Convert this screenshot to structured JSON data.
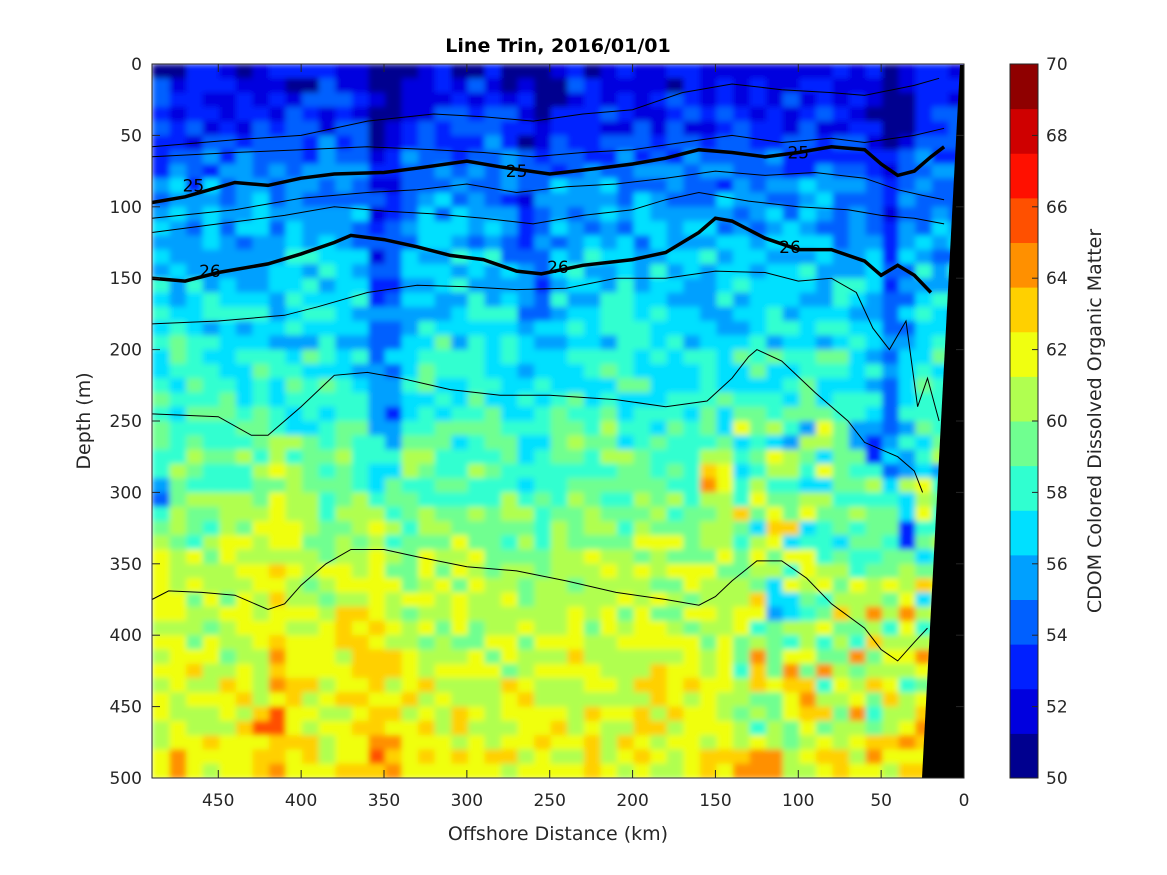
{
  "chart_data": {
    "type": "heatmap",
    "title": "Line Trin, 2016/01/01",
    "xlabel": "Offshore Distance (km)",
    "ylabel": "Depth (m)",
    "colorbar_label": "CDOM Colored Dissolved Organic Matter",
    "xlim": [
      0,
      490
    ],
    "x_reversed": true,
    "ylim": [
      0,
      500
    ],
    "y_reversed": true,
    "clim": [
      50,
      70
    ],
    "x_ticks": [
      450,
      400,
      350,
      300,
      250,
      200,
      150,
      100,
      50,
      0
    ],
    "y_ticks": [
      0,
      50,
      100,
      150,
      200,
      250,
      300,
      350,
      400,
      450,
      500
    ],
    "colorbar_ticks": [
      50,
      52,
      54,
      56,
      58,
      60,
      62,
      64,
      66,
      68,
      70
    ],
    "colormap": "jet",
    "colorbar_colors": [
      "#00008f",
      "#0000df",
      "#0020ff",
      "#0060ff",
      "#00a0ff",
      "#00e0ff",
      "#30ffd0",
      "#70ff90",
      "#b0ff50",
      "#f0ff10",
      "#ffd000",
      "#ff9000",
      "#ff5000",
      "#ff1000",
      "#cf0000",
      "#8f0000"
    ],
    "depth_profile": [
      {
        "depth": 0,
        "value": 53.5
      },
      {
        "depth": 50,
        "value": 54
      },
      {
        "depth": 100,
        "value": 55.5
      },
      {
        "depth": 150,
        "value": 56.5
      },
      {
        "depth": 200,
        "value": 57.5
      },
      {
        "depth": 250,
        "value": 58.5
      },
      {
        "depth": 300,
        "value": 59.5
      },
      {
        "depth": 350,
        "value": 60.5
      },
      {
        "depth": 400,
        "value": 61
      },
      {
        "depth": 450,
        "value": 61.5
      },
      {
        "depth": 500,
        "value": 62
      }
    ],
    "vertical_low_bands": [
      {
        "x": 350,
        "value_offset": -3
      },
      {
        "x": 260,
        "value_offset": -2
      },
      {
        "x": 45,
        "value_offset": -2.5
      }
    ],
    "hot_spots": [
      {
        "x": 420,
        "depth": 460,
        "value": 67
      },
      {
        "x": 370,
        "depth": 390,
        "value": 65
      },
      {
        "x": 150,
        "depth": 290,
        "value": 67
      },
      {
        "x": 120,
        "depth": 490,
        "value": 67
      },
      {
        "x": 350,
        "depth": 490,
        "value": 66
      },
      {
        "x": 470,
        "depth": 490,
        "value": 65
      }
    ],
    "cold_spots": [
      {
        "x": 110,
        "depth": 380,
        "value": 52.5
      },
      {
        "x": 35,
        "depth": 330,
        "value": 53
      },
      {
        "x": 55,
        "depth": 270,
        "value": 53
      },
      {
        "x": 345,
        "depth": 250,
        "value": 53
      },
      {
        "x": 485,
        "depth": 300,
        "value": 54
      }
    ],
    "bold_isopycnals": [
      {
        "label": "25",
        "label_positions": [
          [
            465,
            85
          ],
          [
            270,
            75
          ],
          [
            100,
            62
          ]
        ],
        "points": [
          [
            490,
            97
          ],
          [
            470,
            93
          ],
          [
            440,
            83
          ],
          [
            420,
            85
          ],
          [
            400,
            80
          ],
          [
            380,
            77
          ],
          [
            350,
            76
          ],
          [
            330,
            73
          ],
          [
            300,
            68
          ],
          [
            280,
            72
          ],
          [
            250,
            77
          ],
          [
            220,
            73
          ],
          [
            200,
            70
          ],
          [
            180,
            66
          ],
          [
            160,
            60
          ],
          [
            140,
            62
          ],
          [
            120,
            65
          ],
          [
            100,
            62
          ],
          [
            80,
            58
          ],
          [
            60,
            60
          ],
          [
            50,
            70
          ],
          [
            40,
            78
          ],
          [
            30,
            75
          ],
          [
            20,
            65
          ],
          [
            12,
            58
          ]
        ]
      },
      {
        "label": "26",
        "label_positions": [
          [
            455,
            145
          ],
          [
            245,
            142
          ],
          [
            105,
            128
          ]
        ],
        "points": [
          [
            490,
            150
          ],
          [
            470,
            152
          ],
          [
            450,
            146
          ],
          [
            420,
            140
          ],
          [
            400,
            133
          ],
          [
            380,
            125
          ],
          [
            370,
            120
          ],
          [
            350,
            123
          ],
          [
            330,
            128
          ],
          [
            310,
            134
          ],
          [
            290,
            137
          ],
          [
            270,
            145
          ],
          [
            255,
            147
          ],
          [
            230,
            141
          ],
          [
            200,
            137
          ],
          [
            180,
            132
          ],
          [
            160,
            118
          ],
          [
            150,
            108
          ],
          [
            140,
            110
          ],
          [
            120,
            122
          ],
          [
            100,
            130
          ],
          [
            80,
            130
          ],
          [
            60,
            138
          ],
          [
            50,
            148
          ],
          [
            40,
            141
          ],
          [
            30,
            148
          ],
          [
            20,
            160
          ]
        ]
      }
    ],
    "thin_isopycnals": [
      [
        [
          490,
          58
        ],
        [
          440,
          53
        ],
        [
          400,
          50
        ],
        [
          360,
          40
        ],
        [
          320,
          35
        ],
        [
          290,
          37
        ],
        [
          260,
          40
        ],
        [
          230,
          35
        ],
        [
          200,
          32
        ],
        [
          170,
          20
        ],
        [
          140,
          14
        ],
        [
          110,
          18
        ],
        [
          80,
          20
        ],
        [
          60,
          22
        ],
        [
          30,
          15
        ],
        [
          15,
          10
        ]
      ],
      [
        [
          490,
          65
        ],
        [
          440,
          62
        ],
        [
          400,
          60
        ],
        [
          360,
          58
        ],
        [
          320,
          60
        ],
        [
          290,
          62
        ],
        [
          260,
          65
        ],
        [
          230,
          62
        ],
        [
          200,
          60
        ],
        [
          170,
          55
        ],
        [
          140,
          50
        ],
        [
          110,
          55
        ],
        [
          80,
          52
        ],
        [
          60,
          55
        ],
        [
          30,
          50
        ],
        [
          12,
          45
        ]
      ],
      [
        [
          490,
          108
        ],
        [
          440,
          102
        ],
        [
          400,
          94
        ],
        [
          360,
          90
        ],
        [
          330,
          88
        ],
        [
          300,
          84
        ],
        [
          270,
          90
        ],
        [
          240,
          86
        ],
        [
          210,
          84
        ],
        [
          180,
          80
        ],
        [
          150,
          75
        ],
        [
          120,
          78
        ],
        [
          90,
          76
        ],
        [
          60,
          80
        ],
        [
          40,
          88
        ],
        [
          25,
          92
        ],
        [
          12,
          95
        ]
      ],
      [
        [
          490,
          118
        ],
        [
          450,
          112
        ],
        [
          410,
          106
        ],
        [
          380,
          100
        ],
        [
          350,
          103
        ],
        [
          320,
          105
        ],
        [
          290,
          108
        ],
        [
          260,
          112
        ],
        [
          230,
          106
        ],
        [
          200,
          102
        ],
        [
          180,
          95
        ],
        [
          160,
          90
        ],
        [
          130,
          96
        ],
        [
          100,
          100
        ],
        [
          70,
          102
        ],
        [
          50,
          106
        ],
        [
          30,
          108
        ],
        [
          12,
          112
        ]
      ],
      [
        [
          490,
          182
        ],
        [
          450,
          180
        ],
        [
          410,
          176
        ],
        [
          390,
          170
        ],
        [
          360,
          160
        ],
        [
          330,
          155
        ],
        [
          300,
          156
        ],
        [
          270,
          158
        ],
        [
          240,
          157
        ],
        [
          210,
          150
        ],
        [
          180,
          150
        ],
        [
          150,
          145
        ],
        [
          120,
          146
        ],
        [
          100,
          152
        ],
        [
          80,
          150
        ],
        [
          65,
          160
        ],
        [
          55,
          185
        ],
        [
          45,
          200
        ],
        [
          35,
          180
        ],
        [
          28,
          240
        ],
        [
          22,
          220
        ],
        [
          15,
          250
        ]
      ],
      [
        [
          490,
          245
        ],
        [
          450,
          247
        ],
        [
          430,
          260
        ],
        [
          420,
          260
        ],
        [
          400,
          240
        ],
        [
          380,
          218
        ],
        [
          360,
          216
        ],
        [
          340,
          220
        ],
        [
          310,
          228
        ],
        [
          280,
          232
        ],
        [
          250,
          232
        ],
        [
          210,
          235
        ],
        [
          180,
          240
        ],
        [
          155,
          236
        ],
        [
          140,
          220
        ],
        [
          130,
          205
        ],
        [
          125,
          200
        ],
        [
          110,
          208
        ],
        [
          90,
          230
        ],
        [
          70,
          250
        ],
        [
          60,
          265
        ],
        [
          40,
          275
        ],
        [
          30,
          285
        ],
        [
          25,
          300
        ]
      ],
      [
        [
          490,
          375
        ],
        [
          480,
          369
        ],
        [
          460,
          370
        ],
        [
          440,
          372
        ],
        [
          420,
          382
        ],
        [
          410,
          378
        ],
        [
          400,
          365
        ],
        [
          385,
          350
        ],
        [
          370,
          340
        ],
        [
          350,
          340
        ],
        [
          330,
          345
        ],
        [
          300,
          352
        ],
        [
          270,
          355
        ],
        [
          240,
          362
        ],
        [
          210,
          370
        ],
        [
          180,
          375
        ],
        [
          160,
          379
        ],
        [
          150,
          373
        ],
        [
          140,
          362
        ],
        [
          125,
          348
        ],
        [
          110,
          348
        ],
        [
          95,
          360
        ],
        [
          80,
          378
        ],
        [
          60,
          395
        ],
        [
          50,
          410
        ],
        [
          40,
          418
        ],
        [
          30,
          405
        ],
        [
          22,
          395
        ]
      ]
    ],
    "land_mask": [
      [
        960,
        65
      ],
      [
        965,
        65
      ],
      [
        965,
        778
      ],
      [
        922,
        778
      ]
    ]
  }
}
